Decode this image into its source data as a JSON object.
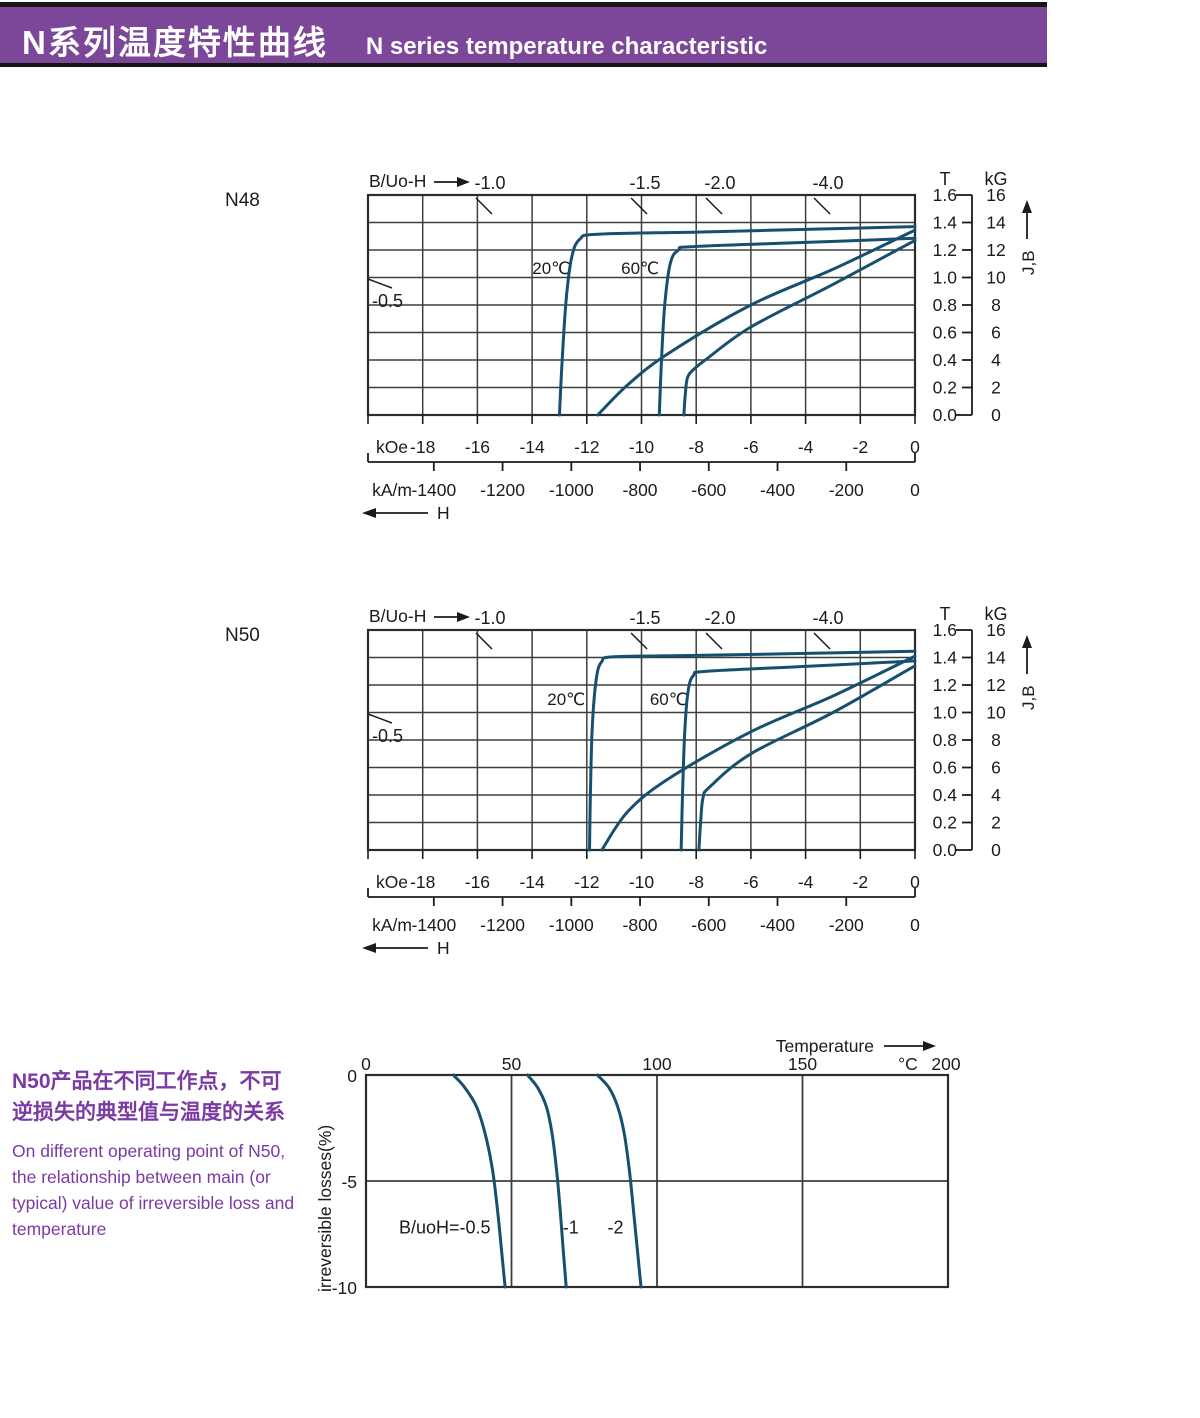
{
  "header": {
    "title_zh": "N系列温度特性曲线",
    "title_en": "N  series temperature characteristic",
    "bar_color": "#7c4699"
  },
  "colors": {
    "curve": "#17506f",
    "grid": "#3e3e3e",
    "border": "#2c2c2c",
    "text": "#1b1b1b",
    "purple": "#7b3aa3"
  },
  "side_note": {
    "zh_line1": "N50产品在不同工作点，不可",
    "zh_line2": "逆损失的典型值与温度的关系",
    "en_line1": "On different operating point of N50,",
    "en_line2": "the relationship between main (or",
    "en_line3": "typical) value of irreversible loss and",
    "en_line4": "temperature"
  },
  "chart_data": [
    {
      "id": "n48",
      "type": "line",
      "title": "N48",
      "corner_label": "B/Uo-H",
      "h_arrow_label": "H",
      "jb_label": "J,B",
      "x_koe": {
        "unit": "kOe",
        "ticks": [
          -18,
          -16,
          -14,
          -12,
          -10,
          -8,
          -6,
          -4,
          -2,
          0
        ],
        "range": [
          -20,
          0
        ]
      },
      "x_kam": {
        "unit": "kA/m",
        "ticks": [
          -1400,
          -1200,
          -1000,
          -800,
          -600,
          -400,
          -200,
          0
        ]
      },
      "y_T": {
        "unit": "T",
        "ticks": [
          1.6,
          1.4,
          1.2,
          1.0,
          0.8,
          0.6,
          0.4,
          0.2,
          0.0
        ],
        "range": [
          0,
          1.6
        ]
      },
      "y_kG": {
        "unit": "kG",
        "ticks": [
          16,
          14,
          12,
          10,
          8,
          6,
          4,
          2,
          0
        ]
      },
      "load_lines": [
        {
          "label": "-1.0",
          "h": -15.54
        },
        {
          "label": "-1.5",
          "h": -9.87
        },
        {
          "label": "-2.0",
          "h": -7.13
        },
        {
          "label": "-4.0",
          "h": -3.18
        }
      ],
      "load_line_left": {
        "label": "-0.5"
      },
      "temp_labels": [
        {
          "text": "20℃",
          "h": -13.3,
          "t": 1.07
        },
        {
          "text": "60℃",
          "h": -10.05,
          "t": 1.07
        }
      ],
      "series": [
        {
          "name": "J 20C",
          "points": [
            [
              -13.0,
              0
            ],
            [
              -12.9,
              0.4
            ],
            [
              -12.75,
              0.85
            ],
            [
              -12.55,
              1.15
            ],
            [
              -12.25,
              1.28
            ],
            [
              -11.6,
              1.315
            ],
            [
              -8,
              1.33
            ],
            [
              -4,
              1.35
            ],
            [
              0,
              1.37
            ]
          ]
        },
        {
          "name": "B 20C",
          "points": [
            [
              -11.6,
              0
            ],
            [
              -10.5,
              0.22
            ],
            [
              -9,
              0.45
            ],
            [
              -6,
              0.8
            ],
            [
              -3,
              1.06
            ],
            [
              0,
              1.345
            ]
          ]
        },
        {
          "name": "J 60C",
          "points": [
            [
              -9.35,
              0
            ],
            [
              -9.27,
              0.4
            ],
            [
              -9.15,
              0.8
            ],
            [
              -8.95,
              1.1
            ],
            [
              -8.65,
              1.2
            ],
            [
              -8.1,
              1.225
            ],
            [
              -4,
              1.255
            ],
            [
              0,
              1.285
            ]
          ]
        },
        {
          "name": "B 60C",
          "points": [
            [
              -8.45,
              0
            ],
            [
              -8.4,
              0.15
            ],
            [
              -8.32,
              0.27
            ],
            [
              -8.1,
              0.33
            ],
            [
              -7.6,
              0.41
            ],
            [
              -6,
              0.64
            ],
            [
              -3,
              0.95
            ],
            [
              0,
              1.27
            ]
          ]
        }
      ]
    },
    {
      "id": "n50",
      "type": "line",
      "title": "N50",
      "corner_label": "B/Uo-H",
      "h_arrow_label": "H",
      "jb_label": "J,B",
      "x_koe": {
        "unit": "kOe",
        "ticks": [
          -18,
          -16,
          -14,
          -12,
          -10,
          -8,
          -6,
          -4,
          -2,
          0
        ],
        "range": [
          -20,
          0
        ]
      },
      "x_kam": {
        "unit": "kA/m",
        "ticks": [
          -1400,
          -1200,
          -1000,
          -800,
          -600,
          -400,
          -200,
          0
        ]
      },
      "y_T": {
        "unit": "T",
        "ticks": [
          1.6,
          1.4,
          1.2,
          1.0,
          0.8,
          0.6,
          0.4,
          0.2,
          0.0
        ],
        "range": [
          0,
          1.6
        ]
      },
      "y_kG": {
        "unit": "kG",
        "ticks": [
          16,
          14,
          12,
          10,
          8,
          6,
          4,
          2,
          0
        ]
      },
      "load_lines": [
        {
          "label": "-1.0",
          "h": -15.54
        },
        {
          "label": "-1.5",
          "h": -9.87
        },
        {
          "label": "-2.0",
          "h": -7.13
        },
        {
          "label": "-4.0",
          "h": -3.18
        }
      ],
      "load_line_left": {
        "label": "-0.5"
      },
      "temp_labels": [
        {
          "text": "20℃",
          "h": -12.75,
          "t": 1.1
        },
        {
          "text": "60℃",
          "h": -9.0,
          "t": 1.1
        }
      ],
      "series": [
        {
          "name": "J 20C",
          "points": [
            [
              -11.9,
              0
            ],
            [
              -11.87,
              0.4
            ],
            [
              -11.8,
              0.9
            ],
            [
              -11.65,
              1.25
            ],
            [
              -11.45,
              1.37
            ],
            [
              -11.0,
              1.405
            ],
            [
              -8,
              1.415
            ],
            [
              -4,
              1.43
            ],
            [
              0,
              1.445
            ]
          ]
        },
        {
          "name": "B 20C",
          "points": [
            [
              -11.45,
              0
            ],
            [
              -10.5,
              0.28
            ],
            [
              -9,
              0.52
            ],
            [
              -6,
              0.86
            ],
            [
              -3,
              1.12
            ],
            [
              0,
              1.41
            ]
          ]
        },
        {
          "name": "J 60C",
          "points": [
            [
              -8.55,
              0
            ],
            [
              -8.5,
              0.4
            ],
            [
              -8.42,
              0.85
            ],
            [
              -8.3,
              1.15
            ],
            [
              -8.1,
              1.27
            ],
            [
              -7.6,
              1.3
            ],
            [
              -4,
              1.335
            ],
            [
              0,
              1.375
            ]
          ]
        },
        {
          "name": "B 60C",
          "points": [
            [
              -7.9,
              0
            ],
            [
              -7.84,
              0.2
            ],
            [
              -7.75,
              0.38
            ],
            [
              -7.5,
              0.46
            ],
            [
              -6,
              0.7
            ],
            [
              -3,
              1.0
            ],
            [
              0,
              1.34
            ]
          ]
        }
      ]
    },
    {
      "id": "loss",
      "type": "line",
      "x_axis": {
        "label": "Temperature",
        "unit": "°C",
        "ticks": [
          0,
          50,
          100,
          150,
          200
        ],
        "range": [
          0,
          200
        ]
      },
      "y_axis": {
        "label": "irreversible  losses(%)",
        "ticks": [
          0,
          -5,
          -10
        ],
        "range": [
          -10,
          0
        ]
      },
      "series": [
        {
          "name": "B/uoH=-0.5",
          "points": [
            [
              30,
              0
            ],
            [
              34,
              -0.6
            ],
            [
              38,
              -1.5
            ],
            [
              41,
              -2.8
            ],
            [
              43.5,
              -4.5
            ],
            [
              45.3,
              -6.5
            ],
            [
              46.6,
              -8.3
            ],
            [
              47.8,
              -10
            ]
          ]
        },
        {
          "name": "-1",
          "points": [
            [
              55.5,
              0
            ],
            [
              59,
              -0.6
            ],
            [
              62,
              -1.5
            ],
            [
              64,
              -2.8
            ],
            [
              65.5,
              -4.5
            ],
            [
              66.8,
              -6.5
            ],
            [
              67.8,
              -8.3
            ],
            [
              68.8,
              -10
            ]
          ]
        },
        {
          "name": "-2",
          "points": [
            [
              79.5,
              0
            ],
            [
              83.5,
              -0.6
            ],
            [
              86.5,
              -1.5
            ],
            [
              88.8,
              -2.8
            ],
            [
              90.5,
              -4.5
            ],
            [
              92,
              -6.5
            ],
            [
              93.3,
              -8.3
            ],
            [
              94.5,
              -10
            ]
          ]
        }
      ],
      "curve_labels": [
        {
          "text": "B/uoH=-0.5",
          "t": 42.8,
          "loss": -7.2,
          "anchor": "end"
        },
        {
          "text": "-1",
          "t": 67.6,
          "loss": -7.2,
          "anchor": "start"
        },
        {
          "text": "-2",
          "t": 88.5,
          "loss": -7.2,
          "anchor": "end"
        }
      ]
    }
  ]
}
